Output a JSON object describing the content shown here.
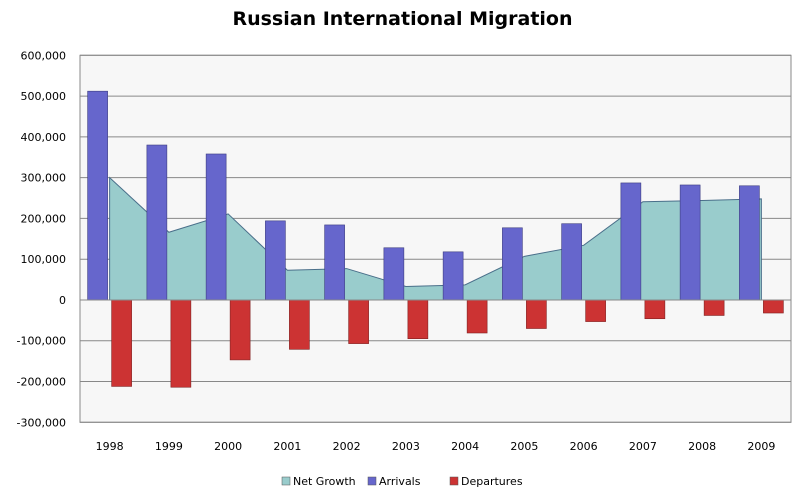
{
  "chart_data": {
    "type": "bar",
    "title": "Russian International Migration",
    "xlabel": "",
    "ylabel": "",
    "ylim": [
      -300000,
      600000
    ],
    "yticks": [
      "600,000",
      "500,000",
      "400,000",
      "300,000",
      "200,000",
      "100,000",
      "0",
      "-100,000",
      "-200,000",
      "-300,000"
    ],
    "grid": true,
    "legend_position": "bottom",
    "categories": [
      "1998",
      "1999",
      "2000",
      "2001",
      "2002",
      "2003",
      "2004",
      "2005",
      "2006",
      "2007",
      "2008",
      "2009"
    ],
    "series": [
      {
        "name": "Net Growth",
        "type": "area",
        "color": "#99CCCC",
        "values": [
          300000,
          166000,
          211000,
          73000,
          77000,
          33000,
          37000,
          107000,
          134000,
          241000,
          244000,
          248000
        ]
      },
      {
        "name": "Arrivals",
        "type": "bar",
        "color": "#6666CC",
        "values": [
          512000,
          380000,
          358000,
          194000,
          184000,
          128000,
          118000,
          177000,
          187000,
          287000,
          282000,
          280000
        ]
      },
      {
        "name": "Departures",
        "type": "bar",
        "color": "#CC3333",
        "values": [
          -212000,
          -214000,
          -147000,
          -121000,
          -107000,
          -95000,
          -81000,
          -70000,
          -53000,
          -46000,
          -38000,
          -32000
        ]
      }
    ]
  }
}
